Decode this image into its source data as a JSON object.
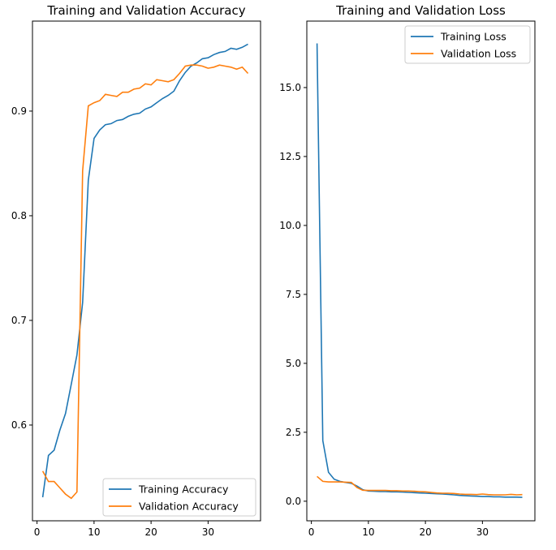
{
  "chart_data": [
    {
      "type": "line",
      "title": "Training and Validation Accuracy",
      "xlim": [
        -0.8,
        39.2
      ],
      "ylim": [
        0.5085,
        0.986
      ],
      "xticks": [
        0,
        10,
        20,
        30
      ],
      "yticks": [
        0.6,
        0.7,
        0.8,
        0.9
      ],
      "ytick_labels": [
        "0.6",
        "0.7",
        "0.8",
        "0.9"
      ],
      "legend": "lower right",
      "grid": false,
      "x": [
        1,
        2,
        3,
        4,
        5,
        6,
        7,
        8,
        9,
        10,
        11,
        12,
        13,
        14,
        15,
        16,
        17,
        18,
        19,
        20,
        21,
        22,
        23,
        24,
        25,
        26,
        27,
        28,
        29,
        30,
        31,
        32,
        33,
        34,
        35,
        36,
        37
      ],
      "series": [
        {
          "name": "Training Accuracy",
          "color": "#1f77b4",
          "values": [
            0.531,
            0.571,
            0.576,
            0.595,
            0.611,
            0.639,
            0.667,
            0.717,
            0.834,
            0.874,
            0.882,
            0.887,
            0.888,
            0.891,
            0.892,
            0.895,
            0.897,
            0.898,
            0.902,
            0.904,
            0.908,
            0.912,
            0.915,
            0.919,
            0.929,
            0.937,
            0.943,
            0.946,
            0.95,
            0.951,
            0.954,
            0.956,
            0.957,
            0.96,
            0.959,
            0.961,
            0.964
          ]
        },
        {
          "name": "Validation Accuracy",
          "color": "#ff7f0e",
          "values": [
            0.556,
            0.546,
            0.546,
            0.54,
            0.534,
            0.53,
            0.536,
            0.843,
            0.905,
            0.908,
            0.91,
            0.916,
            0.915,
            0.914,
            0.918,
            0.918,
            0.921,
            0.922,
            0.926,
            0.925,
            0.93,
            0.929,
            0.928,
            0.93,
            0.936,
            0.943,
            0.944,
            0.944,
            0.943,
            0.941,
            0.942,
            0.944,
            0.943,
            0.942,
            0.94,
            0.942,
            0.936
          ]
        }
      ]
    },
    {
      "type": "line",
      "title": "Training and Validation Loss",
      "xlim": [
        -0.8,
        39.2
      ],
      "ylim": [
        -0.71,
        17.41
      ],
      "xticks": [
        0,
        10,
        20,
        30
      ],
      "yticks": [
        0,
        2.5,
        5,
        7.5,
        10,
        12.5,
        15
      ],
      "ytick_labels": [
        "0.0",
        "2.5",
        "5.0",
        "7.5",
        "10.0",
        "12.5",
        "15.0"
      ],
      "legend": "upper right",
      "grid": false,
      "x": [
        1,
        2,
        3,
        4,
        5,
        6,
        7,
        8,
        9,
        10,
        11,
        12,
        13,
        14,
        15,
        16,
        17,
        18,
        19,
        20,
        21,
        22,
        23,
        24,
        25,
        26,
        27,
        28,
        29,
        30,
        31,
        32,
        33,
        34,
        35,
        36,
        37
      ],
      "series": [
        {
          "name": "Training Loss",
          "color": "#1f77b4",
          "values": [
            16.6,
            2.2,
            1.05,
            0.8,
            0.72,
            0.68,
            0.65,
            0.55,
            0.42,
            0.37,
            0.36,
            0.35,
            0.35,
            0.34,
            0.34,
            0.33,
            0.32,
            0.31,
            0.3,
            0.29,
            0.28,
            0.27,
            0.26,
            0.25,
            0.23,
            0.21,
            0.2,
            0.19,
            0.18,
            0.17,
            0.17,
            0.16,
            0.16,
            0.15,
            0.15,
            0.15,
            0.14
          ]
        },
        {
          "name": "Validation Loss",
          "color": "#ff7f0e",
          "values": [
            0.9,
            0.72,
            0.7,
            0.7,
            0.7,
            0.69,
            0.68,
            0.5,
            0.4,
            0.39,
            0.39,
            0.39,
            0.39,
            0.38,
            0.38,
            0.37,
            0.37,
            0.36,
            0.35,
            0.34,
            0.32,
            0.3,
            0.29,
            0.29,
            0.28,
            0.26,
            0.25,
            0.25,
            0.24,
            0.26,
            0.24,
            0.23,
            0.23,
            0.23,
            0.25,
            0.23,
            0.24
          ]
        }
      ]
    }
  ]
}
